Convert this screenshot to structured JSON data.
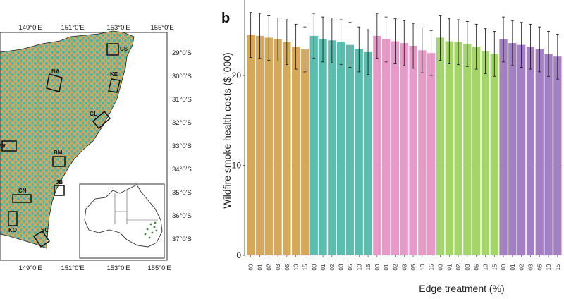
{
  "panel_label": "b",
  "map": {
    "longitudes": [
      "149°0'E",
      "151°0'E",
      "153°0'E",
      "155°0'E"
    ],
    "latitudes": [
      "29°0'S",
      "30°0'S",
      "31°0'S",
      "32°0'S",
      "33°0'S",
      "34°0'S",
      "35°0'S",
      "36°0'S",
      "37°0'S"
    ],
    "regions": [
      "CS",
      "NA",
      "KE",
      "GL",
      "W",
      "BM",
      "JB",
      "CN",
      "KO",
      "SC"
    ],
    "colors": {
      "land_a": "#d6a85a",
      "land_b": "#4fb3a6",
      "region_box": "#111111",
      "inset_points": "#3a8a3a"
    }
  },
  "chart_data": {
    "type": "bar",
    "ylabel": "Wildfire smoke health costs ($ '000)",
    "xlabel": "Edge treatment (%)",
    "ylim": [
      0,
      28
    ],
    "yticks": [
      "0",
      "10",
      "20"
    ],
    "groups": [
      {
        "name": "group-1",
        "color": "#d5a95b",
        "categories": [
          "00",
          "01",
          "02",
          "03",
          "05",
          "10",
          "15"
        ],
        "values": [
          24.5,
          24.4,
          24.2,
          24.0,
          23.7,
          23.2,
          22.9
        ],
        "error_upper": [
          27.0,
          26.9,
          26.7,
          26.4,
          26.2,
          25.7,
          25.4
        ],
        "error_lower": [
          22.0,
          21.9,
          21.7,
          21.6,
          21.2,
          20.7,
          20.4
        ]
      },
      {
        "name": "group-2",
        "color": "#5bbdad",
        "categories": [
          "00",
          "01",
          "02",
          "03",
          "05",
          "10",
          "15"
        ],
        "values": [
          24.4,
          24.0,
          23.9,
          23.7,
          23.4,
          22.9,
          22.6
        ],
        "error_upper": [
          26.9,
          26.5,
          26.4,
          26.2,
          25.9,
          25.4,
          25.1
        ],
        "error_lower": [
          21.9,
          21.5,
          21.4,
          21.2,
          20.9,
          20.4,
          20.1
        ]
      },
      {
        "name": "group-3",
        "color": "#e69ac7",
        "categories": [
          "00",
          "01",
          "02",
          "03",
          "05",
          "10",
          "15"
        ],
        "values": [
          24.4,
          24.0,
          23.8,
          23.6,
          23.3,
          22.8,
          22.5
        ],
        "error_upper": [
          26.9,
          26.5,
          26.3,
          26.1,
          25.8,
          25.3,
          25.0
        ],
        "error_lower": [
          21.9,
          21.5,
          21.3,
          21.1,
          20.8,
          20.3,
          20.0
        ]
      },
      {
        "name": "group-4",
        "color": "#a3d569",
        "categories": [
          "00",
          "01",
          "02",
          "03",
          "05",
          "10",
          "15"
        ],
        "values": [
          24.2,
          23.8,
          23.7,
          23.5,
          23.2,
          22.7,
          22.4
        ],
        "error_upper": [
          26.7,
          26.3,
          26.2,
          26.0,
          25.7,
          25.2,
          24.9
        ],
        "error_lower": [
          21.7,
          21.3,
          21.2,
          21.0,
          20.7,
          20.2,
          19.9
        ]
      },
      {
        "name": "group-5",
        "color": "#a37fc4",
        "categories": [
          "00",
          "01",
          "02",
          "03",
          "05",
          "10",
          "15"
        ],
        "values": [
          24.0,
          23.6,
          23.4,
          23.2,
          22.9,
          22.4,
          22.1
        ],
        "error_upper": [
          26.5,
          26.1,
          25.9,
          25.7,
          25.4,
          24.9,
          24.6
        ],
        "error_lower": [
          21.5,
          21.1,
          20.9,
          20.7,
          20.4,
          19.9,
          19.6
        ]
      }
    ]
  }
}
